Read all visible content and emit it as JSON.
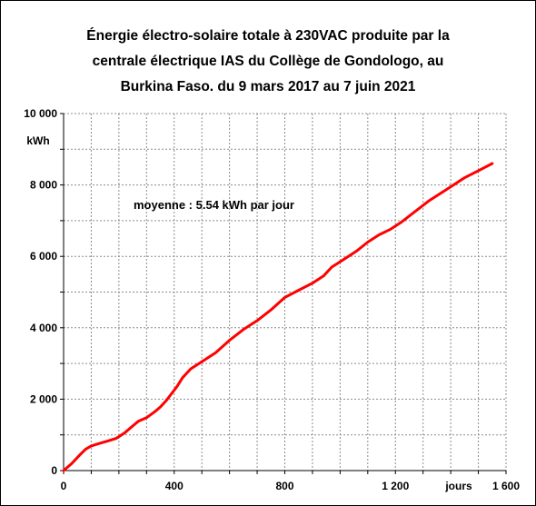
{
  "chart_data": {
    "type": "line",
    "title_lines": [
      "Énergie électro-solaire totale à 230VAC produite par la",
      "centrale électrique IAS du Collège de Gondologo, au",
      "Burkina Faso. du 9 mars 2017 au 7 juin 2021"
    ],
    "xlabel": "jours",
    "ylabel": "kWh",
    "xlim": [
      0,
      1600
    ],
    "ylim": [
      0,
      10000
    ],
    "x_ticks": [
      0,
      400,
      800,
      1200,
      1600
    ],
    "x_tick_labels": [
      "0",
      "400",
      "800",
      "1 200",
      "1 600"
    ],
    "y_ticks": [
      0,
      2000,
      4000,
      6000,
      8000,
      10000
    ],
    "y_tick_labels": [
      "0",
      "2 000",
      "4 000",
      "6 000",
      "8 000",
      "10 000"
    ],
    "x_grid_step": 100,
    "y_grid_step": 1000,
    "grid": true,
    "annotation": "moyenne :  5.54 kWh par jour",
    "series": [
      {
        "color": "#ff0000",
        "points": [
          [
            0,
            0
          ],
          [
            30,
            200
          ],
          [
            60,
            450
          ],
          [
            80,
            600
          ],
          [
            100,
            690
          ],
          [
            130,
            760
          ],
          [
            160,
            830
          ],
          [
            190,
            900
          ],
          [
            220,
            1050
          ],
          [
            250,
            1250
          ],
          [
            270,
            1380
          ],
          [
            300,
            1480
          ],
          [
            330,
            1650
          ],
          [
            350,
            1780
          ],
          [
            370,
            1950
          ],
          [
            390,
            2150
          ],
          [
            410,
            2350
          ],
          [
            430,
            2600
          ],
          [
            460,
            2850
          ],
          [
            500,
            3050
          ],
          [
            550,
            3300
          ],
          [
            600,
            3650
          ],
          [
            650,
            3950
          ],
          [
            700,
            4200
          ],
          [
            750,
            4500
          ],
          [
            800,
            4850
          ],
          [
            850,
            5050
          ],
          [
            900,
            5250
          ],
          [
            940,
            5450
          ],
          [
            970,
            5700
          ],
          [
            1000,
            5850
          ],
          [
            1030,
            6000
          ],
          [
            1060,
            6150
          ],
          [
            1100,
            6400
          ],
          [
            1140,
            6600
          ],
          [
            1180,
            6750
          ],
          [
            1220,
            6950
          ],
          [
            1270,
            7250
          ],
          [
            1320,
            7550
          ],
          [
            1370,
            7800
          ],
          [
            1400,
            7950
          ],
          [
            1450,
            8200
          ],
          [
            1500,
            8400
          ],
          [
            1550,
            8600
          ]
        ]
      }
    ]
  }
}
